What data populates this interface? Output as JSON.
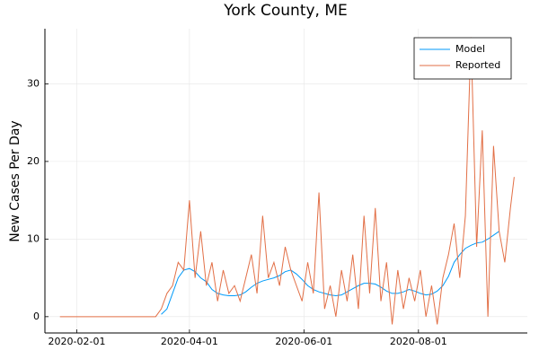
{
  "chart_data": {
    "type": "line",
    "title": "York County, ME",
    "ylabel": "New Cases Per Day",
    "x": [
      "2020-01-23",
      "2020-01-26",
      "2020-01-29",
      "2020-02-01",
      "2020-02-04",
      "2020-02-07",
      "2020-02-10",
      "2020-02-13",
      "2020-02-16",
      "2020-02-19",
      "2020-02-22",
      "2020-02-25",
      "2020-02-28",
      "2020-03-02",
      "2020-03-05",
      "2020-03-08",
      "2020-03-11",
      "2020-03-14",
      "2020-03-17",
      "2020-03-20",
      "2020-03-23",
      "2020-03-26",
      "2020-03-29",
      "2020-04-01",
      "2020-04-04",
      "2020-04-07",
      "2020-04-10",
      "2020-04-13",
      "2020-04-16",
      "2020-04-19",
      "2020-04-22",
      "2020-04-25",
      "2020-04-28",
      "2020-05-01",
      "2020-05-04",
      "2020-05-07",
      "2020-05-10",
      "2020-05-13",
      "2020-05-16",
      "2020-05-19",
      "2020-05-22",
      "2020-05-25",
      "2020-05-28",
      "2020-05-31",
      "2020-06-03",
      "2020-06-06",
      "2020-06-09",
      "2020-06-12",
      "2020-06-15",
      "2020-06-18",
      "2020-06-21",
      "2020-06-24",
      "2020-06-27",
      "2020-06-30",
      "2020-07-03",
      "2020-07-06",
      "2020-07-09",
      "2020-07-12",
      "2020-07-15",
      "2020-07-18",
      "2020-07-21",
      "2020-07-24",
      "2020-07-27",
      "2020-07-30",
      "2020-08-02",
      "2020-08-05",
      "2020-08-08",
      "2020-08-11",
      "2020-08-14",
      "2020-08-17",
      "2020-08-20",
      "2020-08-23",
      "2020-08-26",
      "2020-08-29",
      "2020-09-01",
      "2020-09-04",
      "2020-09-07",
      "2020-09-10",
      "2020-09-13",
      "2020-09-16",
      "2020-09-19",
      "2020-09-21"
    ],
    "series": [
      {
        "name": "Model",
        "color": "#009af9",
        "values": [
          null,
          null,
          null,
          null,
          null,
          null,
          null,
          null,
          null,
          null,
          null,
          null,
          null,
          null,
          null,
          null,
          null,
          null,
          0.3,
          1,
          3,
          5,
          6,
          6.2,
          5.8,
          5,
          4.5,
          3.5,
          3,
          2.8,
          2.7,
          2.7,
          2.8,
          3.2,
          3.8,
          4.3,
          4.6,
          4.8,
          5,
          5.3,
          5.8,
          6,
          5.5,
          4.8,
          4,
          3.5,
          3.2,
          3,
          2.8,
          2.7,
          2.8,
          3.2,
          3.6,
          4,
          4.3,
          4.3,
          4.2,
          3.8,
          3.3,
          3,
          3,
          3.2,
          3.5,
          3.3,
          3,
          2.8,
          2.9,
          3.3,
          4,
          5.2,
          7,
          8,
          8.8,
          9.2,
          9.5,
          9.6,
          10,
          10.5,
          11,
          null,
          null,
          null
        ]
      },
      {
        "name": "Reported",
        "color": "#e26f46",
        "values": [
          0,
          0,
          0,
          0,
          0,
          0,
          0,
          0,
          0,
          0,
          0,
          0,
          0,
          0,
          0,
          0,
          0,
          0,
          1,
          3,
          4,
          7,
          6,
          15,
          5,
          11,
          4,
          7,
          2,
          6,
          3,
          4,
          2,
          5,
          8,
          3,
          13,
          5,
          7,
          4,
          9,
          6,
          4,
          2,
          7,
          3,
          16,
          1,
          4,
          0,
          6,
          2,
          8,
          1,
          13,
          3,
          14,
          2,
          7,
          -1,
          6,
          1,
          5,
          2,
          6,
          0,
          4,
          -1,
          5,
          8,
          12,
          5,
          13,
          36,
          9,
          24,
          0,
          22,
          11,
          7,
          14,
          18
        ]
      }
    ],
    "xlim": [
      "2020-01-15",
      "2020-09-28"
    ],
    "xticks": [
      "2020-02-01",
      "2020-04-01",
      "2020-06-01",
      "2020-08-01"
    ],
    "ylim": [
      -2.1,
      37.1
    ],
    "yticks": [
      0,
      10,
      20,
      30
    ],
    "grid": true,
    "legend": "top-right"
  }
}
